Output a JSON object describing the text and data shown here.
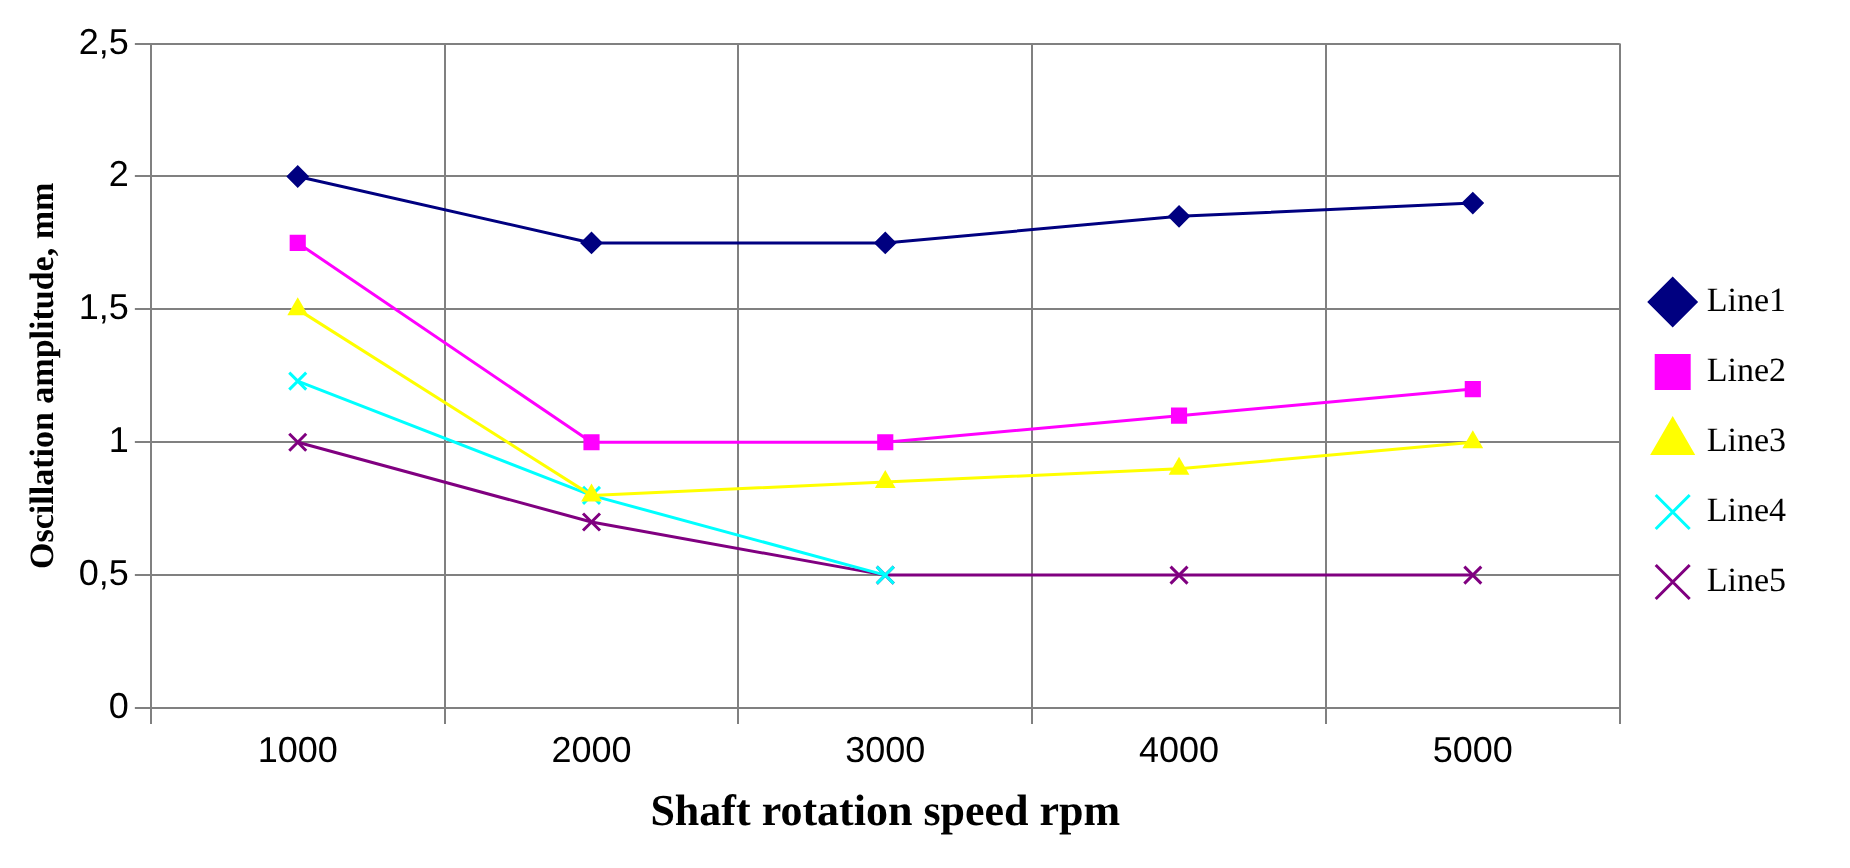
{
  "chart_data": {
    "type": "line",
    "xlabel": "Shaft rotation speed rpm",
    "ylabel": "Oscillation amplitude, mm",
    "categories": [
      "1000",
      "2000",
      "3000",
      "4000",
      "5000"
    ],
    "ylim": [
      0,
      2.5
    ],
    "yticks": [
      {
        "value": 0,
        "label": "0"
      },
      {
        "value": 0.5,
        "label": "0,5"
      },
      {
        "value": 1,
        "label": "1"
      },
      {
        "value": 1.5,
        "label": "1,5"
      },
      {
        "value": 2,
        "label": "2"
      },
      {
        "value": 2.5,
        "label": "2,5"
      }
    ],
    "grid": true,
    "legend": "right",
    "line_style": "solid",
    "series": [
      {
        "name": "Line1",
        "color": "#000080",
        "marker": "diamond",
        "values": [
          2.0,
          1.75,
          1.75,
          1.85,
          1.9
        ]
      },
      {
        "name": "Line2",
        "color": "#ff00ff",
        "marker": "square",
        "values": [
          1.75,
          1.0,
          1.0,
          1.1,
          1.2
        ]
      },
      {
        "name": "Line3",
        "color": "#ffff00",
        "marker": "triangle",
        "values": [
          1.5,
          0.8,
          0.85,
          0.9,
          1.0
        ]
      },
      {
        "name": "Line4",
        "color": "#00ffff",
        "marker": "cross",
        "values": [
          1.23,
          0.8,
          0.5,
          null,
          null
        ]
      },
      {
        "name": "Line5",
        "color": "#800080",
        "marker": "cross",
        "values": [
          1.0,
          0.7,
          0.5,
          0.5,
          0.5
        ]
      }
    ]
  }
}
